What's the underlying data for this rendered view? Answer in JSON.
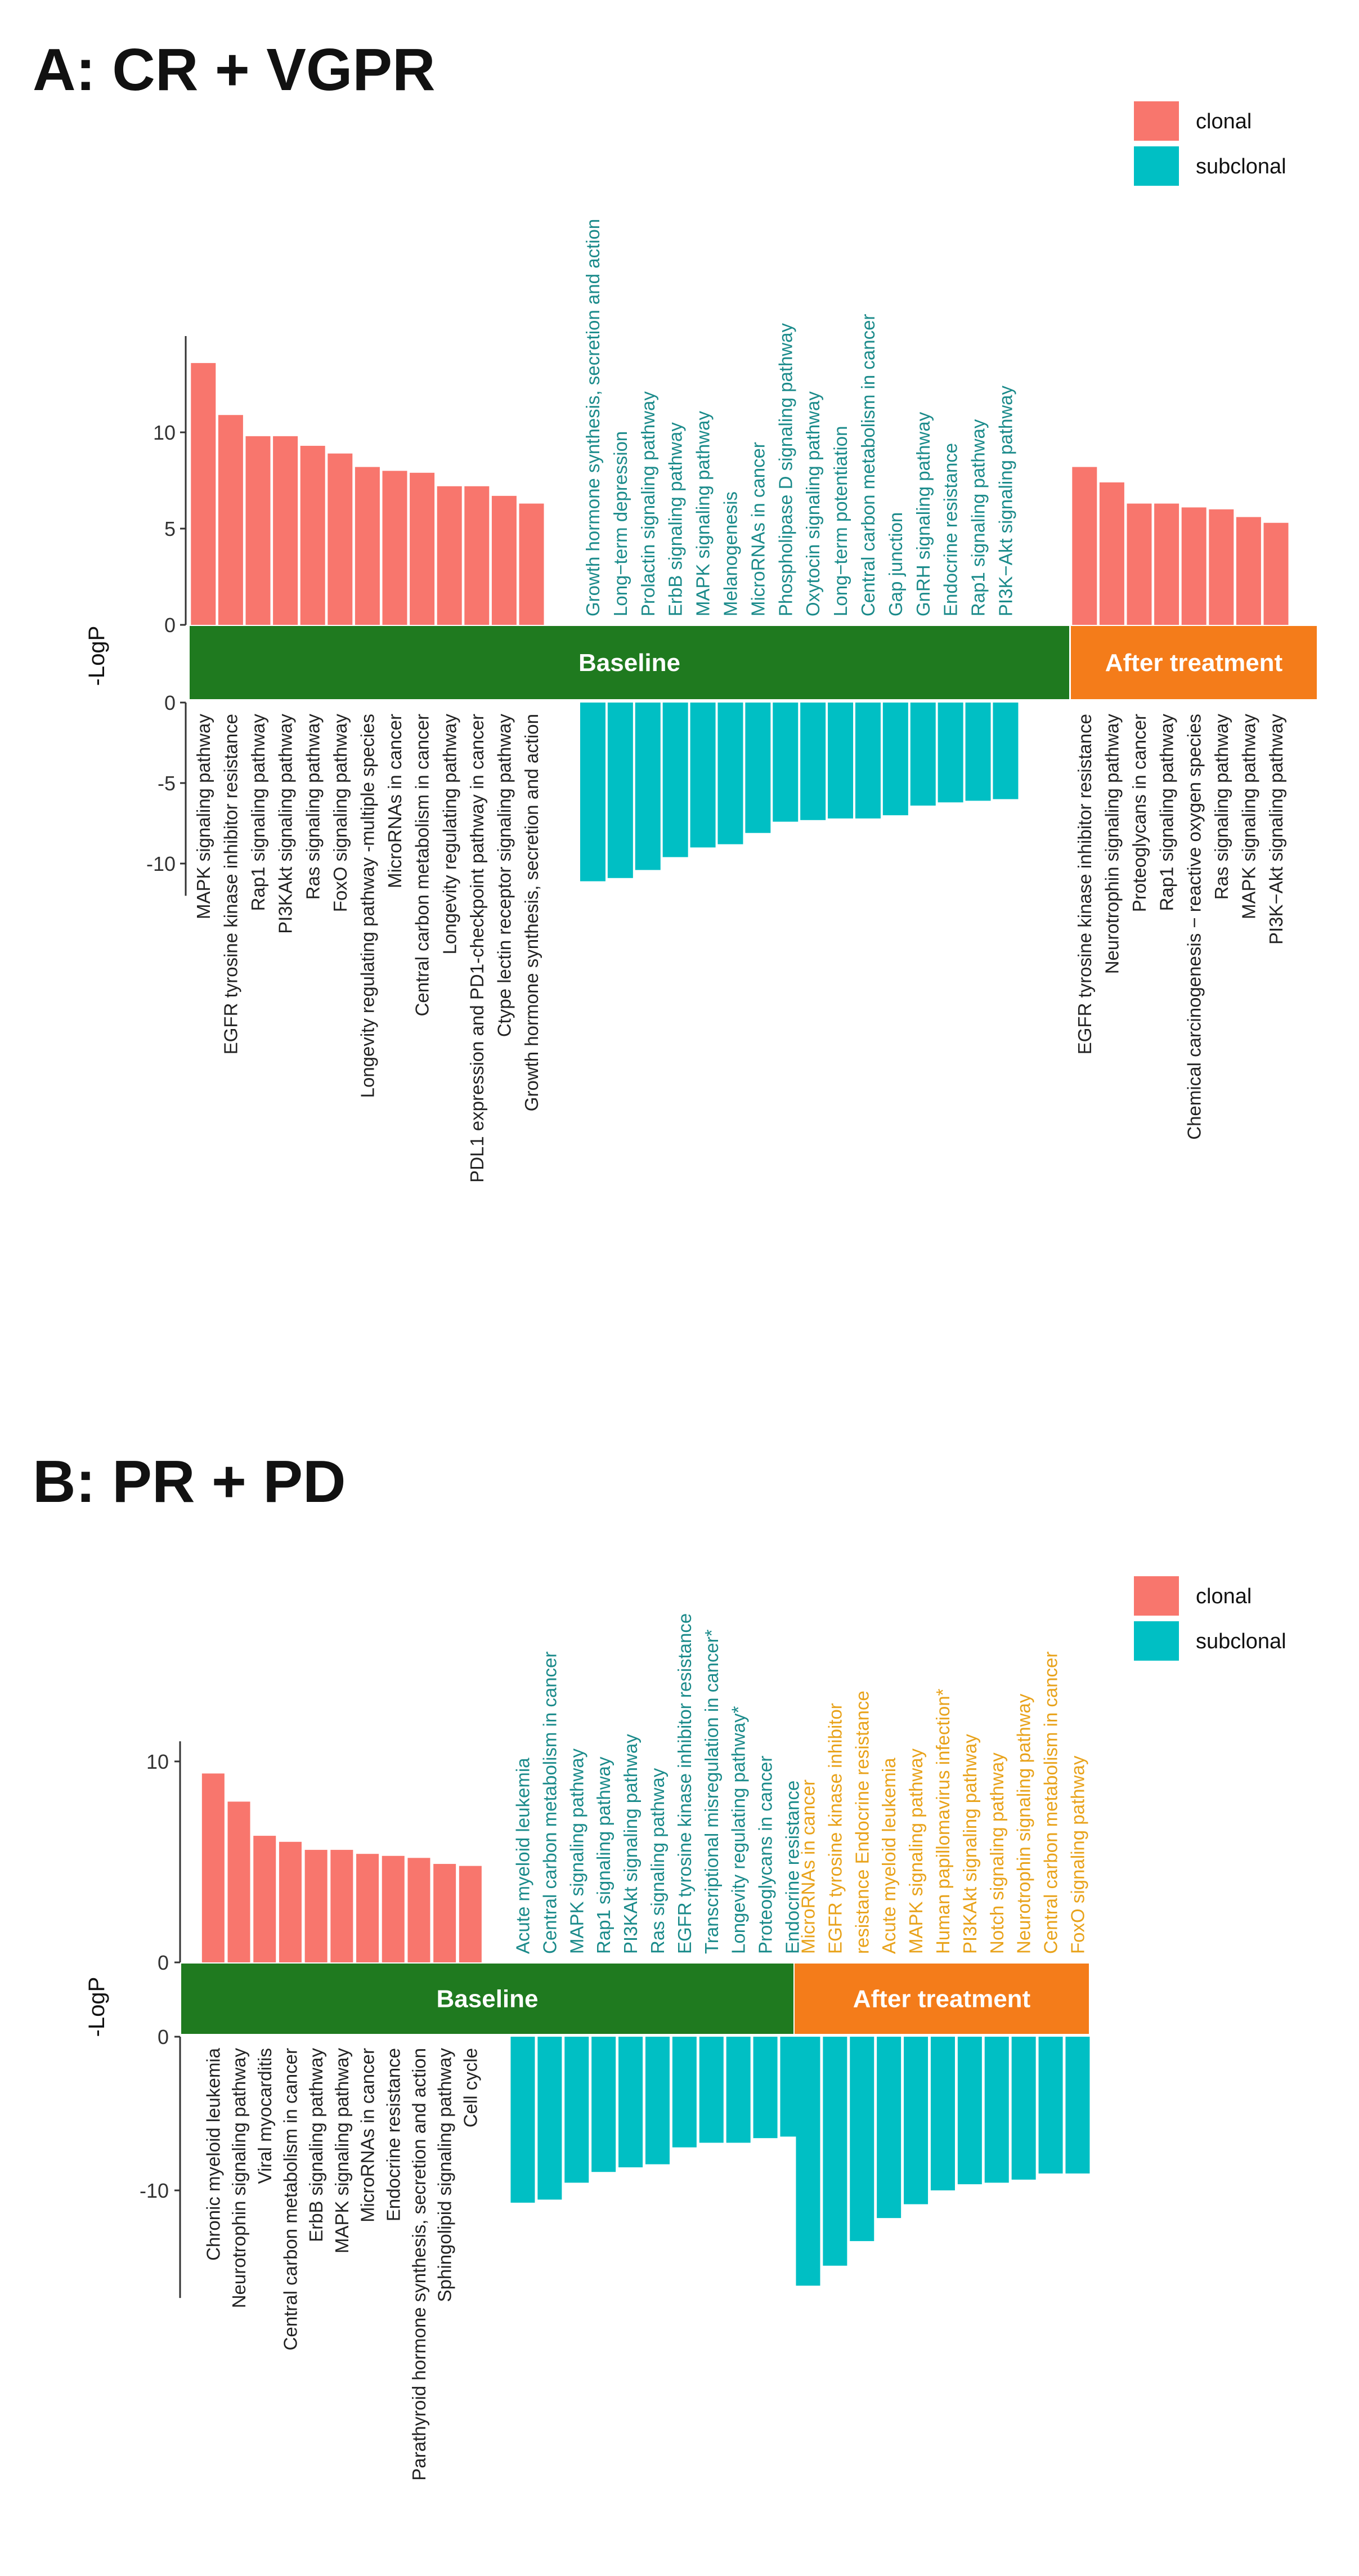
{
  "chart_data": [
    {
      "type": "bar",
      "title": "A: CR + VGPR",
      "ylabel": "-LogP",
      "top_ticks": [
        "10",
        "5",
        "0"
      ],
      "bottom_ticks": [
        "0",
        "-5",
        "-10"
      ],
      "top_range": [
        0,
        15
      ],
      "bottom_range": [
        -12,
        0
      ],
      "legend": {
        "position": "top-right",
        "items": [
          {
            "label": "clonal",
            "color": "#f8766d"
          },
          {
            "label": "subclonal",
            "color": "#00bfc4"
          }
        ]
      },
      "groups": [
        {
          "label": "Baseline",
          "color": "#1f7a1f"
        },
        {
          "label": "After treatment",
          "color": "#f47c1a"
        }
      ],
      "series": [
        {
          "name": "clonal",
          "group": "Baseline",
          "label_color": "#222222",
          "labels": [
            "MAPK signaling pathway",
            "EGFR tyrosine kinase inhibitor resistance",
            "Rap1 signaling pathway",
            "PI3KAkt signaling pathway",
            "Ras signaling pathway",
            "FoxO signaling pathway",
            "Longevity regulating pathway -multiple species",
            "MicroRNAs in cancer",
            "Central carbon metabolism in cancer",
            "Longevity regulating pathway",
            "PDL1 expression and PD1-checkpoint pathway in cancer",
            "Ctype lectin receptor signaling pathway",
            "Growth hormone synthesis, secretion and action"
          ],
          "values": [
            13.6,
            10.9,
            9.8,
            9.8,
            9.3,
            8.9,
            8.2,
            8.0,
            7.9,
            7.2,
            7.2,
            6.7,
            6.3
          ]
        },
        {
          "name": "subclonal",
          "group": "Baseline",
          "label_color": "#1a8a8a",
          "labels": [
            "Growth hormone synthesis, secretion and action",
            "Long−term depression",
            "Prolactin signaling pathway",
            "ErbB signaling pathway",
            "MAPK signaling pathway",
            "Melanogenesis",
            "MicroRNAs in cancer",
            "Phospholipase D signaling pathway",
            "Oxytocin signaling pathway",
            "Long−term potentiation",
            "Central carbon metabolism in cancer",
            "Gap junction",
            "GnRH signaling pathway",
            "Endocrine resistance",
            "Rap1 signaling pathway",
            "PI3K−Akt signaling pathway"
          ],
          "values": [
            -11.1,
            -10.9,
            -10.4,
            -9.6,
            -9.0,
            -8.8,
            -8.1,
            -7.4,
            -7.3,
            -7.2,
            -7.2,
            -7.0,
            -6.4,
            -6.2,
            -6.1,
            -6.0
          ]
        },
        {
          "name": "clonal",
          "group": "After treatment",
          "label_color": "#222222",
          "labels": [
            "EGFR tyrosine kinase inhibitor resistance",
            "Neurotrophin signaling pathway",
            "Proteoglycans in cancer",
            "Rap1 signaling pathway",
            "Chemical carcinogenesis − reactive oxygen species",
            "Ras signaling pathway",
            "MAPK signaling pathway",
            "PI3K−Akt signaling pathway"
          ],
          "values": [
            8.2,
            7.4,
            6.3,
            6.3,
            6.1,
            6.0,
            5.6,
            5.3
          ]
        }
      ]
    },
    {
      "type": "bar",
      "title": "B: PR + PD",
      "ylabel": "-LogP",
      "top_ticks": [
        "10",
        "0"
      ],
      "bottom_ticks": [
        "0",
        "-10"
      ],
      "top_range": [
        0,
        11
      ],
      "bottom_range": [
        -17,
        0
      ],
      "legend": {
        "position": "top-right",
        "items": [
          {
            "label": "clonal",
            "color": "#f8766d"
          },
          {
            "label": "subclonal",
            "color": "#00bfc4"
          }
        ]
      },
      "groups": [
        {
          "label": "Baseline",
          "color": "#1f7a1f"
        },
        {
          "label": "After treatment",
          "color": "#f47c1a"
        }
      ],
      "series": [
        {
          "name": "clonal",
          "group": "Baseline",
          "label_color": "#222222",
          "labels": [
            "Chronic myeloid leukemia",
            "Neurotrophin signaling pathway",
            "Viral myocarditis",
            "Central carbon metabolism in cancer",
            "ErbB signaling pathway",
            "MAPK signaling pathway",
            "MicroRNAs in cancer",
            "Endocrine resistance",
            "Parathyroid hormone synthesis, secretion and action",
            "Sphingolipid signaling pathway",
            "Cell cycle"
          ],
          "values": [
            9.4,
            8.0,
            6.3,
            6.0,
            5.6,
            5.6,
            5.4,
            5.3,
            5.2,
            4.9,
            4.8
          ]
        },
        {
          "name": "subclonal",
          "group": "Baseline",
          "label_color": "#1a8a8a",
          "labels": [
            "Acute myeloid leukemia",
            "Central carbon metabolism in cancer",
            "MAPK signaling pathway",
            "Rap1 signaling pathway",
            "PI3KAkt signaling pathway",
            "Ras signaling pathway",
            "EGFR tyrosine kinase inhibitor resistance",
            "Transcriptional misregulation in cancer*",
            "Longevity regulating pathway*",
            "Proteoglycans in cancer",
            "Endocrine resistance"
          ],
          "values": [
            -10.8,
            -10.6,
            -9.5,
            -8.8,
            -8.5,
            -8.3,
            -7.2,
            -6.9,
            -6.9,
            -6.6,
            -6.5
          ]
        },
        {
          "name": "subclonal",
          "group": "After treatment",
          "label_color": "#e8a21a",
          "labels": [
            "MicroRNAs in cancer",
            "EGFR tyrosine kinase inhibitor",
            "resistance Endocrine resistance",
            "Acute myeloid leukemia",
            "MAPK signaling pathway",
            "Human papillomavirus infection*",
            "PI3KAkt signaling pathway",
            "Notch signaling pathway",
            "Neurotrophin signaling pathway",
            "Central carbon metabolism in cancer",
            "FoxO signaling pathway"
          ],
          "values": [
            -16.2,
            -14.9,
            -13.3,
            -11.8,
            -10.9,
            -10.0,
            -9.6,
            -9.5,
            -9.3,
            -8.9,
            -8.9
          ]
        }
      ]
    }
  ]
}
